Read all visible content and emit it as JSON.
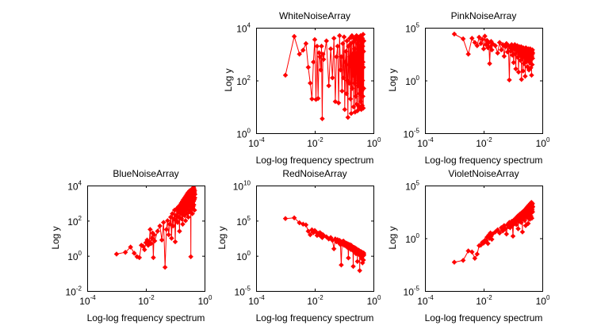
{
  "figure": {
    "background": "#ffffff",
    "line_color": "#ff0000",
    "marker": "diamond-plus"
  },
  "chart_data": [
    {
      "id": "white",
      "type": "line",
      "scale": "loglog",
      "title": "WhiteNoiseArray",
      "xlabel": "Log-log frequency spectrum",
      "ylabel": "Log y",
      "xlim": [
        0.0001,
        1
      ],
      "ylim": [
        1,
        10000
      ],
      "xticks": [
        "10^-4",
        "10^-2",
        "10^0"
      ],
      "yticks": [
        "10^0",
        "10^2",
        "10^4"
      ],
      "x": [
        0.001,
        0.002,
        0.003,
        0.004,
        0.005,
        0.006,
        0.007,
        0.008,
        0.009,
        0.01,
        0.011,
        0.012,
        0.013,
        0.014,
        0.015,
        0.016,
        0.017,
        0.018,
        0.019,
        0.02,
        0.025,
        0.03,
        0.035,
        0.04,
        0.045,
        0.05,
        0.055,
        0.06,
        0.065,
        0.07,
        0.075,
        0.08,
        0.085,
        0.09,
        0.095,
        0.1,
        0.105,
        0.11,
        0.115,
        0.12,
        0.125,
        0.13,
        0.135,
        0.14,
        0.145,
        0.15,
        0.155,
        0.16,
        0.165,
        0.17,
        0.175,
        0.18,
        0.185,
        0.19,
        0.195,
        0.2,
        0.205,
        0.21,
        0.215,
        0.22,
        0.225,
        0.23,
        0.235,
        0.24,
        0.245,
        0.25,
        0.255,
        0.26,
        0.265,
        0.27,
        0.275,
        0.28,
        0.285,
        0.29,
        0.295,
        0.3,
        0.305,
        0.31,
        0.315,
        0.32,
        0.325,
        0.33,
        0.335,
        0.34,
        0.345,
        0.35,
        0.355,
        0.36,
        0.365,
        0.37,
        0.375,
        0.38,
        0.385,
        0.39,
        0.395,
        0.4,
        0.405,
        0.41,
        0.415,
        0.42,
        0.425,
        0.43,
        0.435,
        0.44,
        0.445,
        0.45,
        0.455,
        0.46,
        0.465,
        0.47
      ],
      "y_log10": [
        2.2,
        3.67,
        3.0,
        3.15,
        3.4,
        2.5,
        1.9,
        1.3,
        2.7,
        3.55,
        1.28,
        3.3,
        1.32,
        3.05,
        2.9,
        2.4,
        3.3,
        0.55,
        3.0,
        2.8,
        3.5,
        1.8,
        3.2,
        2.1,
        3.6,
        1.2,
        2.9,
        3.3,
        1.15,
        3.7,
        2.4,
        2.9,
        1.6,
        3.4,
        2.1,
        3.65,
        0.9,
        2.7,
        3.1,
        1.5,
        3.5,
        2.0,
        0.6,
        3.3,
        2.6,
        1.9,
        3.6,
        2.9,
        1.3,
        3.4,
        0.75,
        2.5,
        3.7,
        1.7,
        3.0,
        2.2,
        3.45,
        1.0,
        2.8,
        3.6,
        1.9,
        3.2,
        0.8,
        2.6,
        3.55,
        1.4,
        3.0,
        2.3,
        3.7,
        1.1,
        2.9,
        3.4,
        0.85,
        2.5,
        3.65,
        1.8,
        3.1,
        2.0,
        3.5,
        1.0,
        2.7,
        3.3,
        1.5,
        3.6,
        0.95,
        2.4,
        3.2,
        1.9,
        3.7,
        1.2,
        2.8,
        3.5,
        0.9,
        2.2,
        3.0,
        1.6,
        3.4,
        2.6,
        1.05,
        3.6,
        2.0,
        3.3,
        1.4,
        2.7,
        3.75,
        0.95,
        2.5,
        3.1,
        1.7,
        3.5
      ]
    },
    {
      "id": "pink",
      "type": "line",
      "scale": "loglog",
      "title": "PinkNoiseArray",
      "xlabel": "Log-log frequency spectrum",
      "ylabel": "Log y",
      "xlim": [
        0.0001,
        1
      ],
      "ylim": [
        1e-05,
        100000
      ],
      "xticks": [
        "10^-4",
        "10^-2",
        "10^0"
      ],
      "yticks": [
        "10^-5",
        "10^0",
        "10^5"
      ],
      "x_ref": "white",
      "y_log10": [
        4.4,
        3.95,
        2.5,
        4.0,
        3.6,
        3.3,
        4.1,
        3.5,
        3.9,
        3.0,
        4.2,
        3.4,
        3.8,
        3.1,
        3.6,
        1.6,
        3.2,
        3.7,
        2.9,
        3.5,
        3.3,
        2.6,
        3.6,
        2.9,
        3.4,
        2.3,
        3.2,
        3.5,
        2.7,
        3.3,
        0.05,
        3.1,
        2.8,
        3.4,
        2.4,
        3.2,
        1.7,
        3.0,
        3.4,
        2.5,
        1.1,
        3.1,
        2.8,
        3.3,
        2.2,
        3.0,
        0.8,
        2.7,
        3.2,
        2.4,
        3.0,
        1.9,
        2.8,
        3.2,
        0.1,
        2.6,
        3.0,
        2.2,
        2.9,
        0.9,
        3.1,
        2.5,
        2.8,
        1.6,
        3.0,
        2.3,
        2.7,
        0.4,
        2.9,
        2.6,
        3.1,
        1.8,
        2.5,
        2.9,
        2.1,
        3.0,
        1.3,
        2.7,
        2.4,
        2.9,
        1.9,
        2.6,
        3.0,
        2.2,
        2.8,
        1.0,
        2.5,
        2.9,
        2.3,
        2.7,
        1.7,
        2.6,
        3.0,
        2.0,
        2.8,
        2.4,
        1.2,
        2.7,
        2.9,
        2.2,
        2.6,
        0.5,
        2.8,
        2.3,
        2.7,
        1.5,
        2.5,
        2.9,
        2.1,
        2.6
      ]
    },
    {
      "id": "blue",
      "type": "line",
      "scale": "loglog",
      "title": "BlueNoiseArray",
      "xlabel": "Log-log frequency spectrum",
      "ylabel": "Log y",
      "xlim": [
        0.0001,
        1
      ],
      "ylim": [
        0.01,
        10000
      ],
      "xticks": [
        "10^-4",
        "10^-2",
        "10^0"
      ],
      "yticks": [
        "10^-2",
        "10^0",
        "10^2",
        "10^4"
      ],
      "x_ref": "white",
      "y_log10": [
        0.1,
        0.2,
        0.5,
        0.15,
        -0.05,
        -0.1,
        0.6,
        0.55,
        0.35,
        0.75,
        0.9,
        0.6,
        0.8,
        1.5,
        0.7,
        1.0,
        1.3,
        -0.1,
        1.2,
        0.85,
        1.4,
        1.7,
        0.9,
        1.9,
        -0.65,
        1.5,
        2.0,
        1.2,
        1.8,
        2.2,
        1.0,
        2.4,
        1.7,
        2.1,
        2.6,
        0.8,
        2.3,
        2.0,
        2.7,
        1.9,
        2.5,
        2.8,
        2.2,
        1.4,
        2.6,
        2.9,
        2.4,
        3.0,
        2.1,
        2.7,
        3.1,
        1.8,
        2.8,
        3.2,
        2.5,
        3.0,
        2.3,
        3.3,
        2.7,
        3.1,
        2.0,
        3.4,
        2.9,
        3.2,
        2.6,
        3.5,
        2.4,
        3.0,
        3.4,
        2.8,
        3.6,
        2.2,
        3.2,
        3.5,
        2.9,
        3.3,
        2.6,
        3.7,
        3.0,
        3.4,
        2.5,
        3.6,
        3.1,
        -0.05,
        3.5,
        2.9,
        3.7,
        3.2,
        2.7,
        3.8,
        3.0,
        3.5,
        2.4,
        3.6,
        3.3,
        3.85,
        2.8,
        3.4,
        3.7,
        3.1,
        3.9,
        2.9,
        3.5,
        3.8,
        3.2,
        3.6,
        2.6,
        3.7,
        3.3,
        3.5
      ]
    },
    {
      "id": "red",
      "type": "line",
      "scale": "loglog",
      "title": "RedNoiseArray",
      "xlabel": "Log-log frequency spectrum",
      "ylabel": "Log y",
      "xlim": [
        0.0001,
        1
      ],
      "ylim": [
        1e-05,
        10000000000
      ],
      "xticks": [
        "10^-4",
        "10^-2",
        "10^0"
      ],
      "yticks": [
        "10^-5",
        "10^0",
        "10^5",
        "10^10"
      ],
      "x_ref": "white",
      "y_log10": [
        5.3,
        5.4,
        4.7,
        4.5,
        4.4,
        3.5,
        3.0,
        3.7,
        3.3,
        3.6,
        3.4,
        2.9,
        3.2,
        3.0,
        3.3,
        2.8,
        3.1,
        2.6,
        3.0,
        2.9,
        2.7,
        2.4,
        2.6,
        2.2,
        1.0,
        2.4,
        2.0,
        2.3,
        1.9,
        2.2,
        1.6,
        -1.3,
        2.0,
        1.8,
        2.1,
        1.5,
        1.9,
        1.7,
        1.4,
        1.8,
        1.6,
        1.2,
        1.7,
        -0.3,
        1.5,
        1.3,
        1.6,
        1.1,
        1.4,
        0.9,
        1.5,
        1.2,
        1.0,
        1.3,
        0.8,
        1.2,
        -1.5,
        1.1,
        0.9,
        1.2,
        0.7,
        1.0,
        0.8,
        1.1,
        0.6,
        0.9,
        0.3,
        1.0,
        0.7,
        0.8,
        0.5,
        0.9,
        -0.8,
        0.6,
        0.8,
        0.4,
        0.7,
        0.5,
        0.8,
        0.2,
        0.6,
        0.4,
        0.7,
        -2.1,
        0.5,
        0.3,
        0.6,
        0.1,
        0.5,
        0.3,
        0.6,
        0.0,
        0.4,
        0.2,
        0.5,
        -0.4,
        0.3,
        0.5,
        0.1,
        0.4,
        -1.0,
        0.3,
        0.2,
        0.4,
        0.0,
        0.3,
        -0.6,
        0.2,
        0.4,
        0.1
      ]
    },
    {
      "id": "violet",
      "type": "line",
      "scale": "loglog",
      "title": "VioletNoiseArray",
      "xlabel": "Log-log frequency spectrum",
      "ylabel": "Log y",
      "xlim": [
        0.0001,
        1
      ],
      "ylim": [
        1e-05,
        100000
      ],
      "xticks": [
        "10^-4",
        "10^-2",
        "10^0"
      ],
      "yticks": [
        "10^-5",
        "10^0",
        "10^5"
      ],
      "x_ref": "white",
      "y_log10": [
        -2.27,
        -2.1,
        -1.2,
        -1.3,
        -1.9,
        -1.5,
        -0.7,
        -0.65,
        -0.4,
        -0.45,
        -0.2,
        -0.3,
        0.1,
        -0.5,
        0.3,
        0.0,
        0.5,
        0.2,
        -0.1,
        0.4,
        0.6,
        0.8,
        0.5,
        1.0,
        0.7,
        1.2,
        0.9,
        0.4,
        1.3,
        1.1,
        1.5,
        1.0,
        1.4,
        1.6,
        1.2,
        0.2,
        1.7,
        1.4,
        1.8,
        1.5,
        1.9,
        1.3,
        2.0,
        1.7,
        2.1,
        0.9,
        1.9,
        2.2,
        1.6,
        2.0,
        2.3,
        1.8,
        2.1,
        1.5,
        2.4,
        2.0,
        2.2,
        0.6,
        2.5,
        2.1,
        2.3,
        1.9,
        2.6,
        2.2,
        2.4,
        1.7,
        2.7,
        2.3,
        2.5,
        1.2,
        2.6,
        2.8,
        2.2,
        2.5,
        2.9,
        2.0,
        2.7,
        2.4,
        3.0,
        2.3,
        2.6,
        1.4,
        2.8,
        3.1,
        2.5,
        2.7,
        2.2,
        2.9,
        3.2,
        2.6,
        1.8,
        2.8,
        3.0,
        2.4,
        3.3,
        2.7,
        2.9,
        2.1,
        3.1,
        2.6,
        3.4,
        2.8,
        3.0,
        1.9,
        3.2,
        2.7,
        2.9,
        3.3,
        2.5,
        3.0
      ]
    }
  ]
}
